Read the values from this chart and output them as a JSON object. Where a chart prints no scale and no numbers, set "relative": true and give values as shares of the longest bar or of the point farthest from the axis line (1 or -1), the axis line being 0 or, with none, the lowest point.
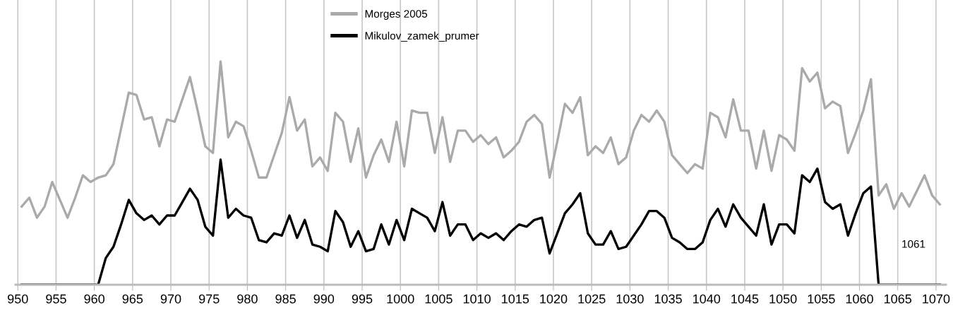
{
  "chart_data": {
    "type": "line",
    "relative": true,
    "x": [
      950.5,
      951.5,
      952.5,
      953.5,
      954.5,
      955.5,
      956.5,
      957.5,
      958.5,
      959.5,
      960.5,
      961.5,
      962.5,
      963.5,
      964.5,
      965.5,
      966.5,
      967.5,
      968.5,
      969.5,
      970.5,
      971.5,
      972.5,
      973.5,
      974.5,
      975.5,
      976.5,
      977.5,
      978.5,
      979.5,
      980.5,
      981.5,
      982.5,
      983.5,
      984.5,
      985.5,
      986.5,
      987.5,
      988.5,
      989.5,
      990.5,
      991.5,
      992.5,
      993.5,
      994.5,
      995.5,
      996.5,
      997.5,
      998.5,
      999.5,
      1000.5,
      1001.5,
      1002.5,
      1003.5,
      1004.5,
      1005.5,
      1006.5,
      1007.5,
      1008.5,
      1009.5,
      1010.5,
      1011.5,
      1012.5,
      1013.5,
      1014.5,
      1015.5,
      1016.5,
      1017.5,
      1018.5,
      1019.5,
      1020.5,
      1021.5,
      1022.5,
      1023.5,
      1024.5,
      1025.5,
      1026.5,
      1027.5,
      1028.5,
      1029.5,
      1030.5,
      1031.5,
      1032.5,
      1033.5,
      1034.5,
      1035.5,
      1036.5,
      1037.5,
      1038.5,
      1039.5,
      1040.5,
      1041.5,
      1042.5,
      1043.5,
      1044.5,
      1045.5,
      1046.5,
      1047.5,
      1048.5,
      1049.5,
      1050.5,
      1051.5,
      1052.5,
      1053.5,
      1054.5,
      1055.5,
      1056.5,
      1057.5,
      1058.5,
      1059.5,
      1060.5,
      1061.5,
      1062.5,
      1063.5,
      1064.5,
      1065.5,
      1066.5,
      1067.5,
      1068.5,
      1069.5,
      1070.5
    ],
    "xlim": [
      949.7,
      1071.3
    ],
    "xticks": [
      950,
      955,
      960,
      965,
      970,
      975,
      980,
      985,
      990,
      995,
      1000,
      1005,
      1010,
      1015,
      1020,
      1025,
      1030,
      1035,
      1040,
      1045,
      1050,
      1055,
      1060,
      1065,
      1070
    ],
    "grid": "x",
    "legend": "top",
    "marker": "none",
    "line_style": "solid",
    "annotations": [
      "1061"
    ],
    "series": [
      {
        "name": "Morges 2005",
        "color": "#aaaaaa",
        "values": [
          0.35,
          0.39,
          0.3,
          0.35,
          0.46,
          0.38,
          0.3,
          0.39,
          0.49,
          0.46,
          0.48,
          0.49,
          0.54,
          0.7,
          0.86,
          0.85,
          0.74,
          0.75,
          0.62,
          0.74,
          0.73,
          0.83,
          0.93,
          0.78,
          0.62,
          0.59,
          1.0,
          0.66,
          0.73,
          0.71,
          0.6,
          0.48,
          0.48,
          0.58,
          0.68,
          0.84,
          0.69,
          0.74,
          0.53,
          0.57,
          0.51,
          0.77,
          0.73,
          0.55,
          0.7,
          0.48,
          0.58,
          0.65,
          0.55,
          0.73,
          0.53,
          0.78,
          0.77,
          0.77,
          0.59,
          0.75,
          0.55,
          0.69,
          0.69,
          0.64,
          0.67,
          0.63,
          0.66,
          0.57,
          0.6,
          0.64,
          0.73,
          0.76,
          0.72,
          0.48,
          0.64,
          0.81,
          0.77,
          0.84,
          0.58,
          0.62,
          0.59,
          0.66,
          0.54,
          0.57,
          0.69,
          0.76,
          0.73,
          0.78,
          0.73,
          0.58,
          0.54,
          0.5,
          0.54,
          0.52,
          0.77,
          0.75,
          0.66,
          0.83,
          0.69,
          0.69,
          0.52,
          0.69,
          0.51,
          0.67,
          0.65,
          0.6,
          0.97,
          0.91,
          0.95,
          0.79,
          0.82,
          0.8,
          0.59,
          0.68,
          0.78,
          0.92,
          0.4,
          0.45,
          0.34,
          0.41,
          0.35,
          0.42,
          0.49,
          0.4,
          0.36
        ]
      },
      {
        "name": "Mikulov_zamek_prumer",
        "color": "#000000",
        "values": [
          0,
          0,
          0,
          0,
          0,
          0,
          0,
          0,
          0,
          0,
          0,
          0.12,
          0.17,
          0.27,
          0.38,
          0.32,
          0.29,
          0.31,
          0.27,
          0.31,
          0.31,
          0.37,
          0.43,
          0.38,
          0.26,
          0.22,
          0.56,
          0.3,
          0.34,
          0.31,
          0.3,
          0.2,
          0.19,
          0.23,
          0.22,
          0.31,
          0.21,
          0.29,
          0.18,
          0.17,
          0.15,
          0.33,
          0.28,
          0.17,
          0.24,
          0.15,
          0.16,
          0.27,
          0.18,
          0.29,
          0.2,
          0.34,
          0.32,
          0.3,
          0.24,
          0.37,
          0.22,
          0.27,
          0.27,
          0.2,
          0.23,
          0.21,
          0.23,
          0.2,
          0.24,
          0.27,
          0.26,
          0.29,
          0.3,
          0.14,
          0.23,
          0.32,
          0.36,
          0.41,
          0.23,
          0.18,
          0.18,
          0.24,
          0.16,
          0.17,
          0.22,
          0.27,
          0.33,
          0.33,
          0.3,
          0.21,
          0.19,
          0.16,
          0.16,
          0.19,
          0.29,
          0.34,
          0.26,
          0.36,
          0.3,
          0.26,
          0.22,
          0.36,
          0.18,
          0.27,
          0.27,
          0.23,
          0.49,
          0.46,
          0.52,
          0.37,
          0.34,
          0.36,
          0.22,
          0.32,
          0.41,
          0.44,
          0,
          0,
          0,
          0,
          0,
          0,
          0,
          0,
          0
        ]
      }
    ]
  }
}
